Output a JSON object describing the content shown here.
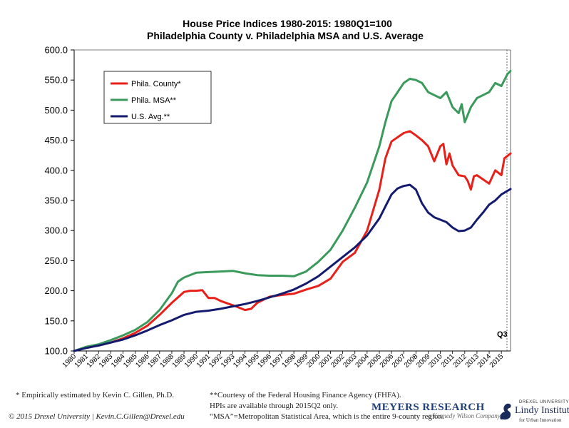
{
  "chart_data": {
    "type": "line",
    "title": "House Price Indices 1980-2015: 1980Q1=100",
    "subtitle": "Philadelphia County v. Philadelphia MSA and U.S. Average",
    "xlabel": "",
    "ylabel": "",
    "ylim": [
      100,
      600
    ],
    "xlim": [
      1980.0,
      2015.75
    ],
    "y_ticks": [
      "100.0",
      "150.0",
      "200.0",
      "250.0",
      "300.0",
      "350.0",
      "400.0",
      "450.0",
      "500.0",
      "550.0",
      "600.0"
    ],
    "x_ticks": [
      "1980",
      "1981",
      "1982",
      "1983",
      "1984",
      "1985",
      "1986",
      "1987",
      "1988",
      "1989",
      "1990",
      "1991",
      "1992",
      "1993",
      "1994",
      "1995",
      "1996",
      "1997",
      "1998",
      "1999",
      "2000",
      "2001",
      "2002",
      "2003",
      "2004",
      "2005",
      "2006",
      "2007",
      "2008",
      "2009",
      "2010",
      "2011",
      "2012",
      "2013",
      "2014",
      "2015"
    ],
    "grid": false,
    "legend_position": "top-left",
    "annotation": "Q3",
    "series": [
      {
        "name": "Phila. County*",
        "color": "#e8201a",
        "points": [
          [
            1980,
            100
          ],
          [
            1981,
            106
          ],
          [
            1982,
            109
          ],
          [
            1983,
            114
          ],
          [
            1984,
            121
          ],
          [
            1985,
            130
          ],
          [
            1986,
            142
          ],
          [
            1987,
            160
          ],
          [
            1988,
            180
          ],
          [
            1989,
            198
          ],
          [
            1989.5,
            200
          ],
          [
            1990,
            200
          ],
          [
            1990.5,
            201
          ],
          [
            1991,
            188
          ],
          [
            1991.5,
            188
          ],
          [
            1992,
            183
          ],
          [
            1993,
            176
          ],
          [
            1994,
            168
          ],
          [
            1994.5,
            170
          ],
          [
            1995,
            180
          ],
          [
            1996,
            190
          ],
          [
            1997,
            193
          ],
          [
            1998,
            195
          ],
          [
            1999,
            202
          ],
          [
            2000,
            208
          ],
          [
            2001,
            220
          ],
          [
            2002,
            248
          ],
          [
            2003,
            263
          ],
          [
            2004,
            300
          ],
          [
            2005,
            368
          ],
          [
            2005.5,
            420
          ],
          [
            2006,
            448
          ],
          [
            2006.5,
            455
          ],
          [
            2007,
            462
          ],
          [
            2007.5,
            465
          ],
          [
            2008,
            458
          ],
          [
            2008.5,
            450
          ],
          [
            2009,
            440
          ],
          [
            2009.5,
            415
          ],
          [
            2010,
            440
          ],
          [
            2010.25,
            444
          ],
          [
            2010.5,
            410
          ],
          [
            2010.75,
            428
          ],
          [
            2011,
            408
          ],
          [
            2011.5,
            392
          ],
          [
            2012,
            390
          ],
          [
            2012.25,
            382
          ],
          [
            2012.5,
            368
          ],
          [
            2012.75,
            390
          ],
          [
            2013,
            392
          ],
          [
            2013.5,
            385
          ],
          [
            2014,
            378
          ],
          [
            2014.5,
            400
          ],
          [
            2015,
            392
          ],
          [
            2015.25,
            420
          ],
          [
            2015.75,
            428
          ]
        ]
      },
      {
        "name": "Phila. MSA**",
        "color": "#3a9a5b",
        "points": [
          [
            1980,
            100
          ],
          [
            1981,
            107
          ],
          [
            1982,
            111
          ],
          [
            1983,
            118
          ],
          [
            1984,
            126
          ],
          [
            1985,
            135
          ],
          [
            1986,
            148
          ],
          [
            1987,
            168
          ],
          [
            1988,
            196
          ],
          [
            1988.5,
            215
          ],
          [
            1989,
            222
          ],
          [
            1990,
            230
          ],
          [
            1991,
            231
          ],
          [
            1992,
            232
          ],
          [
            1993,
            233
          ],
          [
            1994,
            229
          ],
          [
            1995,
            226
          ],
          [
            1996,
            225
          ],
          [
            1997,
            225
          ],
          [
            1998,
            224
          ],
          [
            1999,
            232
          ],
          [
            2000,
            248
          ],
          [
            2001,
            268
          ],
          [
            2002,
            300
          ],
          [
            2003,
            338
          ],
          [
            2004,
            380
          ],
          [
            2005,
            440
          ],
          [
            2005.5,
            480
          ],
          [
            2006,
            515
          ],
          [
            2006.5,
            530
          ],
          [
            2007,
            545
          ],
          [
            2007.5,
            552
          ],
          [
            2008,
            550
          ],
          [
            2008.5,
            545
          ],
          [
            2009,
            530
          ],
          [
            2009.5,
            525
          ],
          [
            2010,
            520
          ],
          [
            2010.5,
            530
          ],
          [
            2011,
            505
          ],
          [
            2011.5,
            495
          ],
          [
            2011.75,
            510
          ],
          [
            2012,
            480
          ],
          [
            2012.5,
            505
          ],
          [
            2013,
            520
          ],
          [
            2013.5,
            525
          ],
          [
            2014,
            530
          ],
          [
            2014.5,
            545
          ],
          [
            2015,
            540
          ],
          [
            2015.5,
            560
          ],
          [
            2015.75,
            565
          ]
        ]
      },
      {
        "name": "U.S. Avg.**",
        "color": "#141b6e",
        "points": [
          [
            1980,
            100
          ],
          [
            1981,
            105
          ],
          [
            1982,
            109
          ],
          [
            1983,
            114
          ],
          [
            1984,
            119
          ],
          [
            1985,
            126
          ],
          [
            1986,
            134
          ],
          [
            1987,
            143
          ],
          [
            1988,
            151
          ],
          [
            1989,
            160
          ],
          [
            1990,
            165
          ],
          [
            1991,
            167
          ],
          [
            1992,
            170
          ],
          [
            1993,
            174
          ],
          [
            1994,
            178
          ],
          [
            1995,
            183
          ],
          [
            1996,
            189
          ],
          [
            1997,
            195
          ],
          [
            1998,
            202
          ],
          [
            1999,
            212
          ],
          [
            2000,
            224
          ],
          [
            2001,
            240
          ],
          [
            2002,
            256
          ],
          [
            2003,
            272
          ],
          [
            2004,
            292
          ],
          [
            2005,
            320
          ],
          [
            2005.5,
            340
          ],
          [
            2006,
            360
          ],
          [
            2006.5,
            370
          ],
          [
            2007,
            374
          ],
          [
            2007.5,
            376
          ],
          [
            2008,
            368
          ],
          [
            2008.5,
            345
          ],
          [
            2009,
            330
          ],
          [
            2009.5,
            322
          ],
          [
            2010,
            318
          ],
          [
            2010.5,
            314
          ],
          [
            2011,
            305
          ],
          [
            2011.5,
            299
          ],
          [
            2012,
            300
          ],
          [
            2012.5,
            305
          ],
          [
            2013,
            318
          ],
          [
            2013.5,
            330
          ],
          [
            2014,
            343
          ],
          [
            2014.5,
            350
          ],
          [
            2015,
            360
          ],
          [
            2015.75,
            369
          ]
        ]
      }
    ]
  },
  "footer": {
    "left_note": "* Empirically estimated by Kevin C. Gillen, Ph.D.",
    "right_note_1": "**Courtesy of the Federal Housing Finance Agency (FHFA).",
    "right_note_2": "HPIs are available through 2015Q2 only.",
    "right_note_3": "“MSA”=Metropolitan Statistical Area, which is the entire 9-county region.",
    "copyright": "© 2015 Drexel University | Kevin.C.Gillen@Drexel.edu"
  },
  "logos": {
    "meyers": "MEYERS RESEARCH",
    "meyers_sub": "a Kennedy Wilson Company",
    "lindy_top": "DREXEL UNIVERSITY",
    "lindy": "Lindy Institute",
    "lindy_sub": "for Urban Innovation"
  }
}
